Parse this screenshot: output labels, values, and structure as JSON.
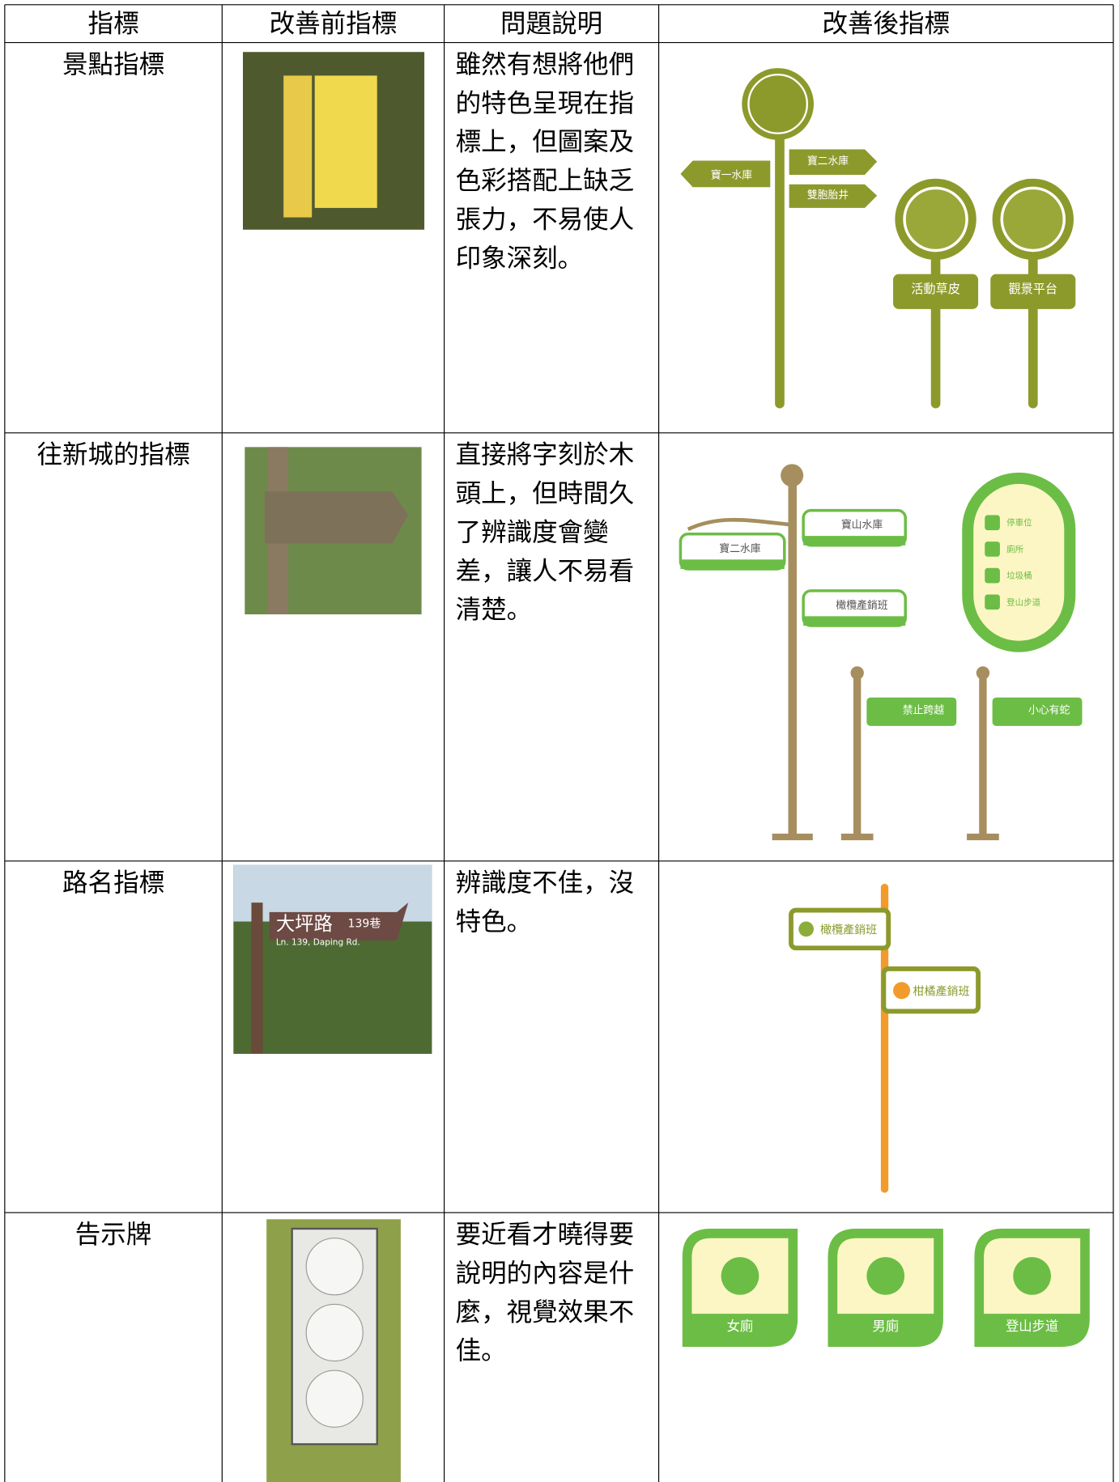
{
  "table": {
    "header": [
      "指標",
      "改善前指標",
      "問題說明",
      "改善後指標"
    ],
    "rows": [
      {
        "name": "景點指標",
        "description_lines": [
          "雖然有想將他們",
          "的特色呈現在指",
          "標上，但圖案及",
          "色彩搭配上缺乏",
          "張力，不易使人",
          "印象深刻。"
        ],
        "after_labels": [
          "寶一水庫",
          "寶二水庫",
          "雙胞胎井",
          "活動草皮",
          "觀景平台"
        ]
      },
      {
        "name": "往新城的指標",
        "description_lines": [
          "直接將字刻於木",
          "頭上，但時間久",
          "了辨識度會變",
          "差，讓人不易看",
          "清楚。"
        ],
        "after_labels": [
          "寶二水庫",
          "寶山水庫",
          "橄欖產銷班",
          "禁止跨越",
          "小心有蛇"
        ],
        "board_labels": [
          "停車位",
          "廁所",
          "垃圾桶",
          "登山步道"
        ]
      },
      {
        "name": "路名指標",
        "description_lines": [
          "辨識度不佳，沒",
          "特色。"
        ],
        "before_texts": [
          "大坪路",
          "139巷",
          "Ln. 139, Daping Rd."
        ],
        "after_labels": [
          "橄欖產銷班",
          "柑橘產銷班"
        ]
      },
      {
        "name": "告示牌",
        "description_lines": [
          "要近看才曉得要",
          "說明的內容是什",
          "麼，視覺效果不",
          "佳。"
        ],
        "after_labels": [
          "女廁",
          "男廁",
          "登山步道"
        ]
      }
    ]
  }
}
